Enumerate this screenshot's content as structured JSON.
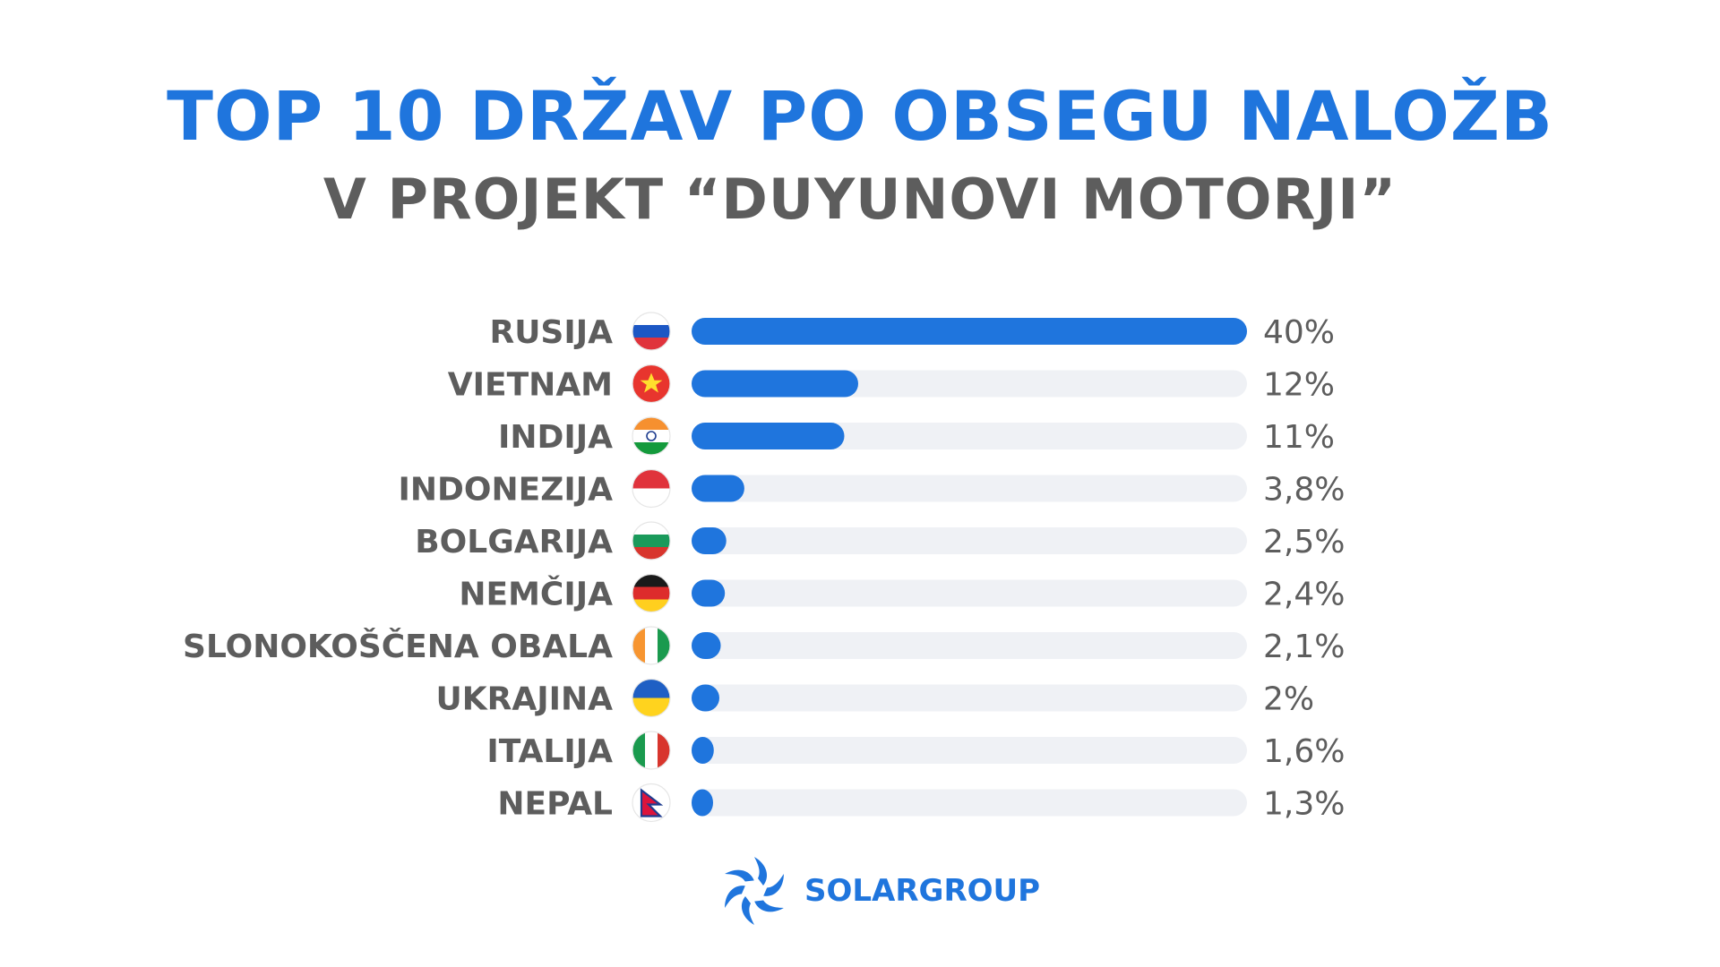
{
  "header": {
    "title": "TOP 10 DRŽAV PO OBSEGU NALOŽB",
    "subtitle": "V PROJEKT “DUYUNOVI MOTORJI”"
  },
  "brand": {
    "name": "SOLARGROUP",
    "color": "#1f75dd"
  },
  "colors": {
    "bar": "#1f75dd",
    "track": "#eff1f5",
    "title": "#1f75dd",
    "text": "#5d5d5d"
  },
  "chart_data": {
    "type": "bar",
    "orientation": "horizontal",
    "title": "TOP 10 DRŽAV PO OBSEGU NALOŽB",
    "subtitle": "V PROJEKT “DUYUNOVI MOTORJI”",
    "xlim": [
      0,
      40
    ],
    "grid": false,
    "categories": [
      "RUSIJA",
      "VIETNAM",
      "INDIJA",
      "INDONEZIJA",
      "BOLGARIJA",
      "NEMČIJA",
      "SLONOKOŠČENA OBALA",
      "UKRAJINA",
      "ITALIJA",
      "NEPAL"
    ],
    "values": [
      40,
      12,
      11,
      3.8,
      2.5,
      2.4,
      2.1,
      2,
      1.6,
      1.3
    ],
    "value_labels": [
      "40%",
      "12%",
      "11%",
      "3,8%",
      "2,5%",
      "2,4%",
      "2,1%",
      "2%",
      "1,6%",
      "1,3%"
    ],
    "flags": [
      "russia-flag-icon",
      "vietnam-flag-icon",
      "india-flag-icon",
      "indonesia-flag-icon",
      "bulgaria-flag-icon",
      "germany-flag-icon",
      "ivory-coast-flag-icon",
      "ukraine-flag-icon",
      "italy-flag-icon",
      "nepal-flag-icon"
    ]
  }
}
